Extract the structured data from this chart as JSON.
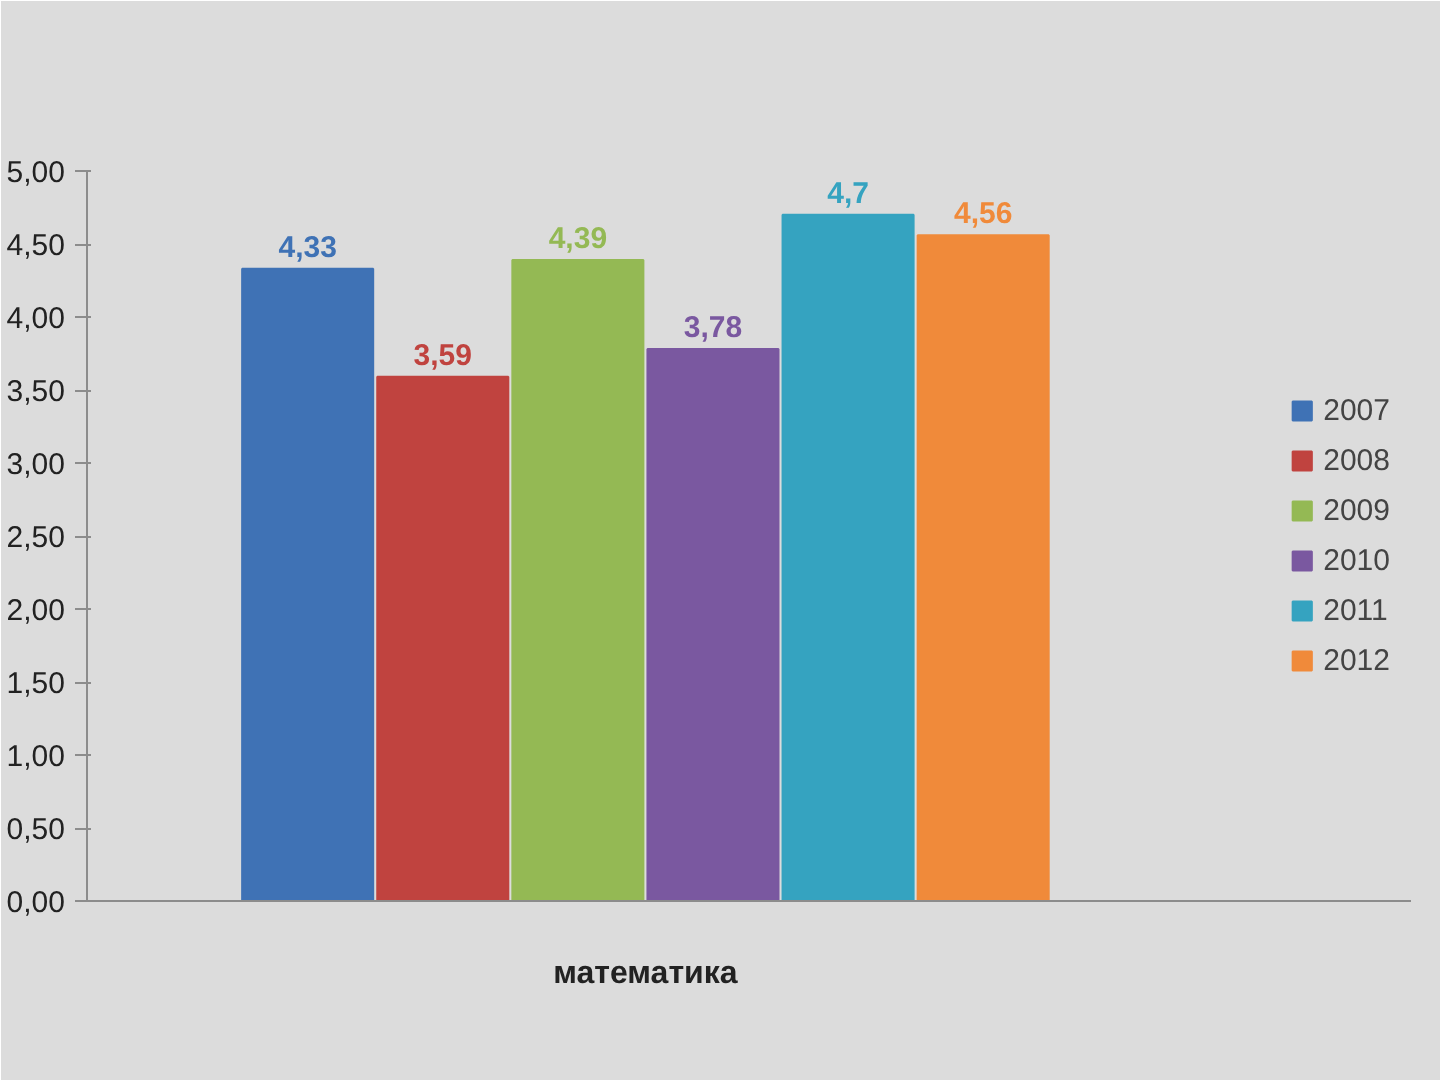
{
  "chart_data": {
    "type": "bar",
    "categories": [
      "математика"
    ],
    "series": [
      {
        "name": "2007",
        "color": "#3f72b5",
        "values": [
          4.33
        ],
        "value_labels": [
          "4,33"
        ]
      },
      {
        "name": "2008",
        "color": "#c0433f",
        "values": [
          3.59
        ],
        "value_labels": [
          "3,59"
        ]
      },
      {
        "name": "2009",
        "color": "#94b954",
        "values": [
          4.39
        ],
        "value_labels": [
          "4,39"
        ]
      },
      {
        "name": "2010",
        "color": "#7a58a0",
        "values": [
          3.78
        ],
        "value_labels": [
          "3,78"
        ]
      },
      {
        "name": "2011",
        "color": "#35a3c0",
        "values": [
          4.7
        ],
        "value_labels": [
          "4,7"
        ]
      },
      {
        "name": "2012",
        "color": "#f08a3a",
        "values": [
          4.56
        ],
        "value_labels": [
          "4,56"
        ]
      }
    ],
    "ylim": [
      0,
      5
    ],
    "yticks": [
      {
        "value": 0,
        "label": "0,00"
      },
      {
        "value": 0.5,
        "label": "0,50"
      },
      {
        "value": 1,
        "label": "1,00"
      },
      {
        "value": 1.5,
        "label": "1,50"
      },
      {
        "value": 2,
        "label": "2,00"
      },
      {
        "value": 2.5,
        "label": "2,50"
      },
      {
        "value": 3,
        "label": "3,00"
      },
      {
        "value": 3.5,
        "label": "3,50"
      },
      {
        "value": 4,
        "label": "4,00"
      },
      {
        "value": 4.5,
        "label": "4,50"
      },
      {
        "value": 5,
        "label": "5,00"
      }
    ],
    "legend": "right"
  }
}
